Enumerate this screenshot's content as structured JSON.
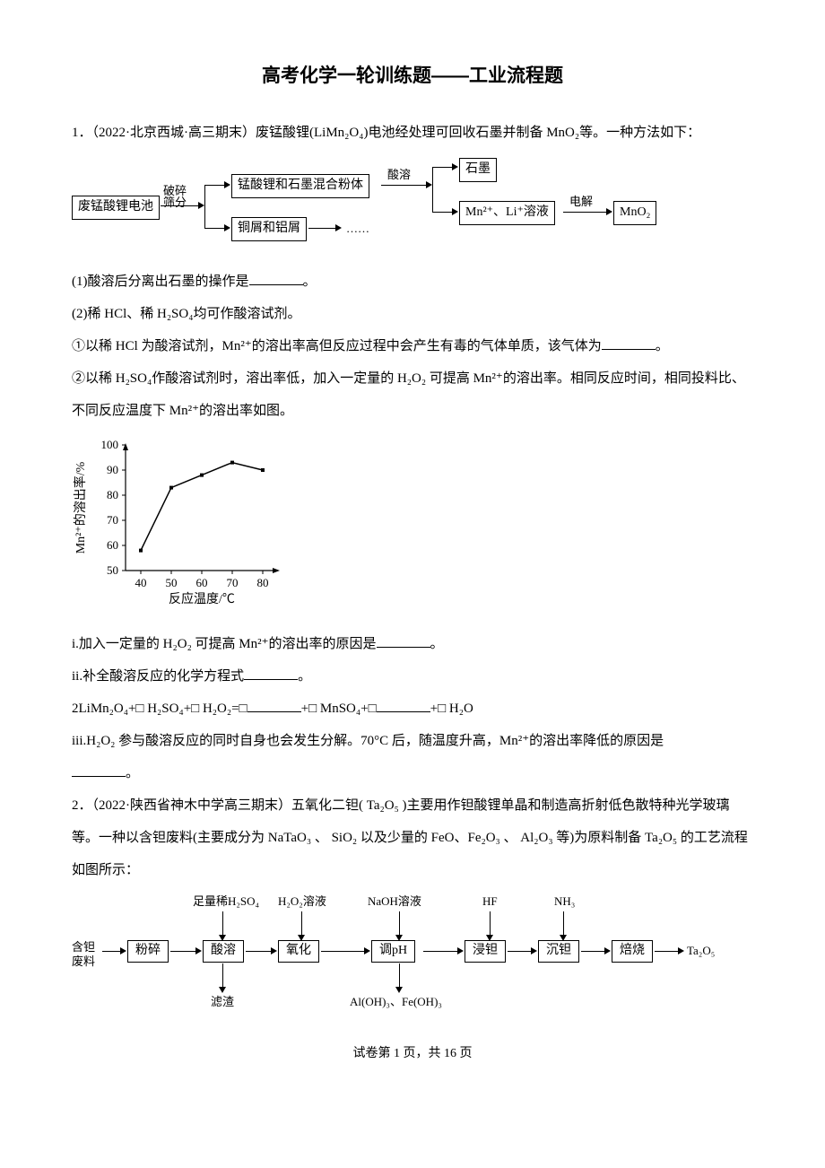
{
  "title": "高考化学一轮训练题——工业流程题",
  "q1_intro": "1．（2022·北京西城·高三期末）废锰酸锂(LiMn₂O₄)电池经处理可回收石墨并制备 MnO₂等。一种方法如下：",
  "flow1": {
    "box_waste": "废锰酸锂电池",
    "label_crush": "破碎\n筛分",
    "box_powder": "锰酸锂和石墨混合粉体",
    "box_copper": "铜屑和铝屑",
    "label_dots": "……",
    "label_acid": "酸溶",
    "box_graphite": "石墨",
    "box_solution": "Mn²⁺、Li⁺溶液",
    "label_elec": "电解",
    "box_mno2": "MnO₂"
  },
  "q1_1": "(1)酸溶后分离出石墨的操作是",
  "q1_1_end": "。",
  "q1_2": "(2)稀 HCl、稀 H₂SO₄均可作酸溶试剂。",
  "q1_2_1": "①以稀 HCl 为酸溶试剂，Mn²⁺的溶出率高但反应过程中会产生有毒的气体单质，该气体为",
  "q1_2_1_end": "。",
  "q1_2_2": "②以稀 H₂SO₄作酸溶试剂时，溶出率低，加入一定量的 H₂O₂ 可提高 Mn²⁺的溶出率。相同反应时间，相同投料比、不同反应温度下 Mn²⁺的溶出率如图。",
  "chart1": {
    "type": "line",
    "xlabel": "反应温度/℃",
    "ylabel": "Mn²⁺的溶出率/%",
    "xlim": [
      35,
      85
    ],
    "ylim": [
      50,
      100
    ],
    "xticks": [
      40,
      50,
      60,
      70,
      80
    ],
    "yticks": [
      50,
      60,
      70,
      80,
      90,
      100
    ],
    "x": [
      40,
      50,
      60,
      70,
      80
    ],
    "y": [
      58,
      83,
      88,
      93,
      90
    ],
    "line_color": "#000000",
    "line_width": 1.5,
    "marker": "square",
    "marker_size": 4,
    "marker_fill": "#000000",
    "background_color": "#ffffff",
    "axis_color": "#000000",
    "font_size": 13
  },
  "q1_i": "i.加入一定量的 H₂O₂ 可提高 Mn²⁺的溶出率的原因是",
  "q1_i_end": "。",
  "q1_ii": "ii.补全酸溶反应的化学方程式",
  "q1_ii_end": "。",
  "q1_eq_a": "2LiMn₂O₄+□ H₂SO₄+□ H₂O₂=□",
  "q1_eq_b": "+□ MnSO₄+□",
  "q1_eq_c": "+□ H₂O",
  "q1_iii": "iii.H₂O₂ 参与酸溶反应的同时自身也会发生分解。70°C 后，随温度升高，Mn²⁺的溶出率降低的原因是",
  "q1_iii_end": "。",
  "q2_intro": "2．（2022·陕西省神木中学高三期末）五氧化二钽( Ta₂O₅ )主要用作钽酸锂单晶和制造高折射低色散特种光学玻璃等。一种以含钽废料(主要成分为 NaTaO₃ 、 SiO₂ 以及少量的  FeO、Fe₂O₃ 、 Al₂O₃ 等)为原料制备 Ta₂O₅ 的工艺流程如图所示：",
  "flow2": {
    "input": "含钽\n废料",
    "top1": "足量稀H₂SO₄",
    "top2": "H₂O₂溶液",
    "top3": "NaOH溶液",
    "top4": "HF",
    "top5": "NH₃",
    "box1": "粉碎",
    "box2": "酸溶",
    "box3": "氧化",
    "box4": "调pH",
    "box5": "浸钽",
    "box6": "沉钽",
    "box7": "焙烧",
    "output": "Ta₂O₅",
    "bot1": "滤渣",
    "bot2": "Al(OH)₃、Fe(OH)₃"
  },
  "footer": "试卷第 1 页，共 16 页"
}
